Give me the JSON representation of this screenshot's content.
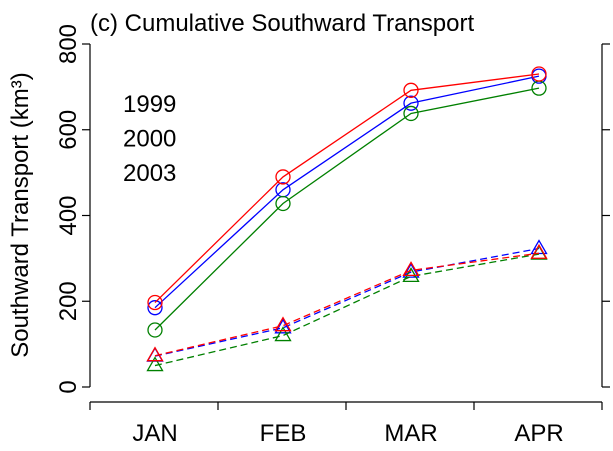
{
  "chart_data": {
    "type": "line",
    "title": "(c) Cumulative Southward Transport",
    "y_label": "Southward Transport (km³)",
    "categories": [
      "JAN",
      "FEB",
      "MAR",
      "APR"
    ],
    "ylim": [
      0,
      800
    ],
    "yticks": [
      0,
      200,
      400,
      600,
      800
    ],
    "series": [
      {
        "name": "1999",
        "color": "#0000ff",
        "linestyle": "solid",
        "marker": "circle",
        "values": [
          185,
          460,
          662,
          725
        ]
      },
      {
        "name": "2000",
        "color": "#008000",
        "linestyle": "solid",
        "marker": "circle",
        "values": [
          133,
          428,
          638,
          697
        ]
      },
      {
        "name": "2003",
        "color": "#ff0000",
        "linestyle": "solid",
        "marker": "circle",
        "values": [
          197,
          490,
          692,
          730
        ]
      },
      {
        "color": "#0000ff",
        "linestyle": "dashed",
        "marker": "triangle",
        "values": [
          72,
          138,
          268,
          323
        ]
      },
      {
        "color": "#008000",
        "linestyle": "dashed",
        "marker": "triangle",
        "values": [
          50,
          120,
          258,
          310
        ]
      },
      {
        "color": "#ff0000",
        "linestyle": "dashed",
        "marker": "triangle",
        "values": [
          73,
          143,
          272,
          312
        ]
      }
    ]
  }
}
